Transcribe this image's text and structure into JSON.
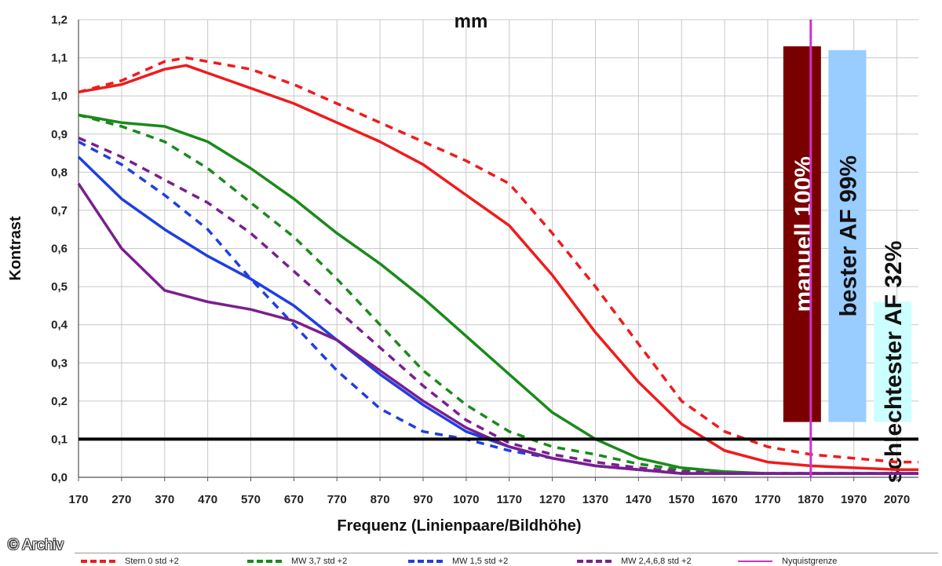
{
  "title": "mm",
  "credit": "© Archiv",
  "chart_data": {
    "type": "line",
    "title": "mm",
    "xlabel": "Frequenz (Linienpaare/Bildhöhe)",
    "ylabel": "Kontrast",
    "xlim": [
      170,
      2120
    ],
    "ylim": [
      0,
      1.2
    ],
    "x_ticks": [
      170,
      270,
      370,
      470,
      570,
      670,
      770,
      870,
      970,
      1070,
      1170,
      1270,
      1370,
      1470,
      1570,
      1670,
      1770,
      1870,
      1970,
      2070
    ],
    "y_ticks": [
      "0,0",
      "0,1",
      "0,2",
      "0,3",
      "0,4",
      "0,5",
      "0,6",
      "0,7",
      "0,8",
      "0,9",
      "1,0",
      "1,1",
      "1,2"
    ],
    "grid": true,
    "reference_line": {
      "y": 0.1,
      "color": "#000000"
    },
    "nyquist_line": {
      "x": 1870,
      "color": "#cc33cc"
    },
    "series": [
      {
        "name": "Stern 0 std +2",
        "color": "#ee1c1c",
        "dash": false,
        "x": [
          170,
          270,
          370,
          420,
          470,
          570,
          670,
          770,
          870,
          970,
          1070,
          1170,
          1270,
          1370,
          1470,
          1570,
          1670,
          1770,
          1870,
          1970,
          2070,
          2120
        ],
        "y": [
          1.01,
          1.03,
          1.07,
          1.08,
          1.06,
          1.02,
          0.98,
          0.93,
          0.88,
          0.82,
          0.74,
          0.66,
          0.53,
          0.38,
          0.25,
          0.14,
          0.07,
          0.04,
          0.03,
          0.025,
          0.02,
          0.02
        ]
      },
      {
        "name": "Stern 0 std +2",
        "color": "#ee1c1c",
        "dash": true,
        "x": [
          170,
          270,
          370,
          420,
          470,
          570,
          670,
          770,
          870,
          970,
          1070,
          1170,
          1270,
          1370,
          1470,
          1570,
          1670,
          1770,
          1870,
          1970,
          2070,
          2120
        ],
        "y": [
          1.01,
          1.04,
          1.09,
          1.1,
          1.09,
          1.07,
          1.03,
          0.98,
          0.93,
          0.88,
          0.83,
          0.77,
          0.64,
          0.5,
          0.35,
          0.2,
          0.12,
          0.08,
          0.06,
          0.05,
          0.04,
          0.04
        ]
      },
      {
        "name": "MW 3,7 std +2",
        "color": "#1a8a1a",
        "dash": false,
        "x": [
          170,
          270,
          370,
          470,
          570,
          670,
          770,
          870,
          970,
          1070,
          1170,
          1270,
          1370,
          1470,
          1570,
          1670,
          1770,
          1870,
          1970,
          2070,
          2120
        ],
        "y": [
          0.95,
          0.93,
          0.92,
          0.88,
          0.81,
          0.73,
          0.64,
          0.56,
          0.47,
          0.37,
          0.27,
          0.17,
          0.1,
          0.05,
          0.025,
          0.015,
          0.01,
          0.01,
          0.01,
          0.01,
          0.01
        ]
      },
      {
        "name": "MW 3,7 std +2",
        "color": "#1a8a1a",
        "dash": true,
        "x": [
          170,
          270,
          370,
          470,
          570,
          670,
          770,
          870,
          970,
          1070,
          1170,
          1270,
          1370,
          1470,
          1570,
          1670,
          1770,
          1870,
          1970,
          2070,
          2120
        ],
        "y": [
          0.95,
          0.92,
          0.88,
          0.81,
          0.72,
          0.63,
          0.52,
          0.4,
          0.28,
          0.19,
          0.12,
          0.08,
          0.06,
          0.035,
          0.02,
          0.01,
          0.01,
          0.01,
          0.01,
          0.01,
          0.01
        ]
      },
      {
        "name": "MW 1,5 std +2",
        "color": "#1f3fe0",
        "dash": false,
        "x": [
          170,
          270,
          370,
          470,
          570,
          670,
          770,
          870,
          970,
          1070,
          1170,
          1270,
          1370,
          1470,
          1570,
          1670,
          1770,
          1870,
          1970,
          2070,
          2120
        ],
        "y": [
          0.84,
          0.73,
          0.65,
          0.58,
          0.52,
          0.45,
          0.36,
          0.27,
          0.19,
          0.12,
          0.08,
          0.05,
          0.03,
          0.02,
          0.01,
          0.01,
          0.01,
          0.01,
          0.01,
          0.01,
          0.01
        ]
      },
      {
        "name": "MW 1,5 std +2",
        "color": "#1f3fe0",
        "dash": true,
        "x": [
          170,
          270,
          370,
          470,
          570,
          670,
          770,
          870,
          970,
          1070,
          1170,
          1270,
          1370,
          1470,
          1570,
          1670,
          1770,
          1870,
          1970,
          2070,
          2120
        ],
        "y": [
          0.88,
          0.82,
          0.74,
          0.65,
          0.52,
          0.4,
          0.28,
          0.18,
          0.12,
          0.1,
          0.07,
          0.05,
          0.03,
          0.02,
          0.01,
          0.01,
          0.01,
          0.01,
          0.01,
          0.01,
          0.01
        ]
      },
      {
        "name": "MW 2,4,6,8 std +2",
        "color": "#7a1f8f",
        "dash": false,
        "x": [
          170,
          270,
          370,
          470,
          570,
          670,
          770,
          870,
          970,
          1070,
          1170,
          1270,
          1370,
          1470,
          1570,
          1670,
          1770,
          1870,
          1970,
          2070,
          2120
        ],
        "y": [
          0.77,
          0.6,
          0.49,
          0.46,
          0.44,
          0.41,
          0.36,
          0.28,
          0.2,
          0.13,
          0.08,
          0.05,
          0.03,
          0.02,
          0.01,
          0.01,
          0.01,
          0.01,
          0.01,
          0.01,
          0.01
        ]
      },
      {
        "name": "MW 2,4,6,8 std +2",
        "color": "#7a1f8f",
        "dash": true,
        "x": [
          170,
          270,
          370,
          470,
          570,
          670,
          770,
          870,
          970,
          1070,
          1170,
          1270,
          1370,
          1470,
          1570,
          1670,
          1770,
          1870,
          1970,
          2070,
          2120
        ],
        "y": [
          0.89,
          0.84,
          0.78,
          0.72,
          0.64,
          0.54,
          0.44,
          0.34,
          0.24,
          0.15,
          0.09,
          0.06,
          0.04,
          0.025,
          0.015,
          0.01,
          0.01,
          0.01,
          0.01,
          0.01,
          0.01
        ]
      }
    ],
    "annotations": [
      {
        "text": "manuell 100%",
        "fill": "#7a0000",
        "text_color": "#ffffff",
        "x": 1850,
        "value": 1.13
      },
      {
        "text": "bester AF 99%",
        "fill": "#99ccff",
        "text_color": "#111111",
        "x": 1955,
        "value": 1.12
      },
      {
        "text": "schlechtester AF 32%",
        "fill": "#ccffff",
        "text_color": "#111111",
        "x": 2060,
        "value": 0.46
      }
    ],
    "legend": {
      "position": "bottom",
      "items": [
        {
          "label": "Stern 0 std +2",
          "color": "#ee1c1c",
          "dash": true
        },
        {
          "label": "MW 3,7 std +2",
          "color": "#1a8a1a",
          "dash": true
        },
        {
          "label": "MW 1,5 std +2",
          "color": "#1f3fe0",
          "dash": true
        },
        {
          "label": "MW 2,4,6,8 std +2",
          "color": "#7a1f8f",
          "dash": true
        },
        {
          "label": "Nyquistgrenze",
          "color": "#cc33cc",
          "dash": false
        }
      ]
    }
  }
}
